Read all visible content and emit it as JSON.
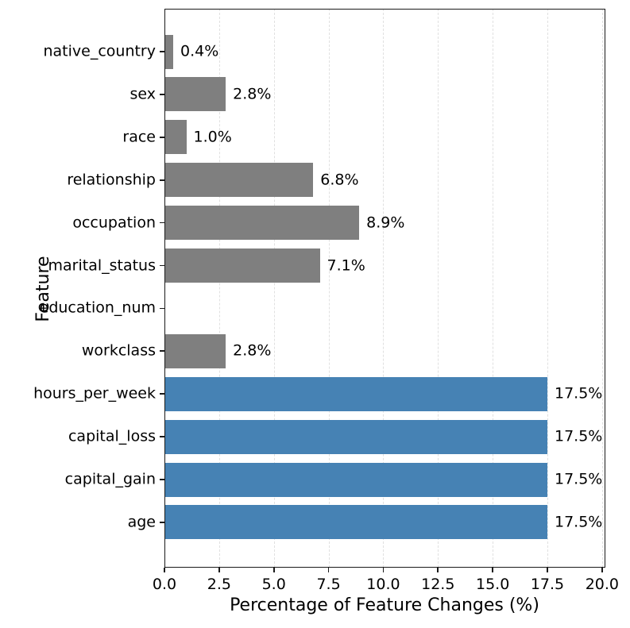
{
  "chart_data": {
    "type": "bar",
    "orientation": "horizontal",
    "title": "",
    "xlabel": "Percentage of Feature Changes (%)",
    "ylabel": "Feature",
    "xlim": [
      0,
      20.15
    ],
    "xticks": [
      {
        "value": 0.0,
        "label": "0.0"
      },
      {
        "value": 2.5,
        "label": "2.5"
      },
      {
        "value": 5.0,
        "label": "5.0"
      },
      {
        "value": 7.5,
        "label": "7.5"
      },
      {
        "value": 10.0,
        "label": "10.0"
      },
      {
        "value": 12.5,
        "label": "12.5"
      },
      {
        "value": 15.0,
        "label": "15.0"
      },
      {
        "value": 17.5,
        "label": "17.5"
      },
      {
        "value": 20.0,
        "label": "20.0"
      }
    ],
    "grid": {
      "axis": "x",
      "style": "dashed",
      "color": "#e0e0e0"
    },
    "legend_position": "none",
    "categories": [
      "native_country",
      "sex",
      "race",
      "relationship",
      "occupation",
      "marital_status",
      "education_num",
      "workclass",
      "hours_per_week",
      "capital_loss",
      "capital_gain",
      "age"
    ],
    "values": [
      0.4,
      2.8,
      1.0,
      6.8,
      8.9,
      7.1,
      0.0,
      2.8,
      17.5,
      17.5,
      17.5,
      17.5
    ],
    "bar_labels": [
      "0.4%",
      "2.8%",
      "1.0%",
      "6.8%",
      "8.9%",
      "7.1%",
      "",
      "2.8%",
      "17.5%",
      "17.5%",
      "17.5%",
      "17.5%"
    ],
    "bar_color_keys": [
      "gray",
      "gray",
      "gray",
      "gray",
      "gray",
      "gray",
      "gray",
      "gray",
      "blue",
      "blue",
      "blue",
      "blue"
    ],
    "colors": {
      "gray": "#7f7f7f",
      "blue": "#4682b4",
      "spine": "#1a1a1a",
      "grid": "#e0e0e0",
      "text": "#000000"
    }
  }
}
